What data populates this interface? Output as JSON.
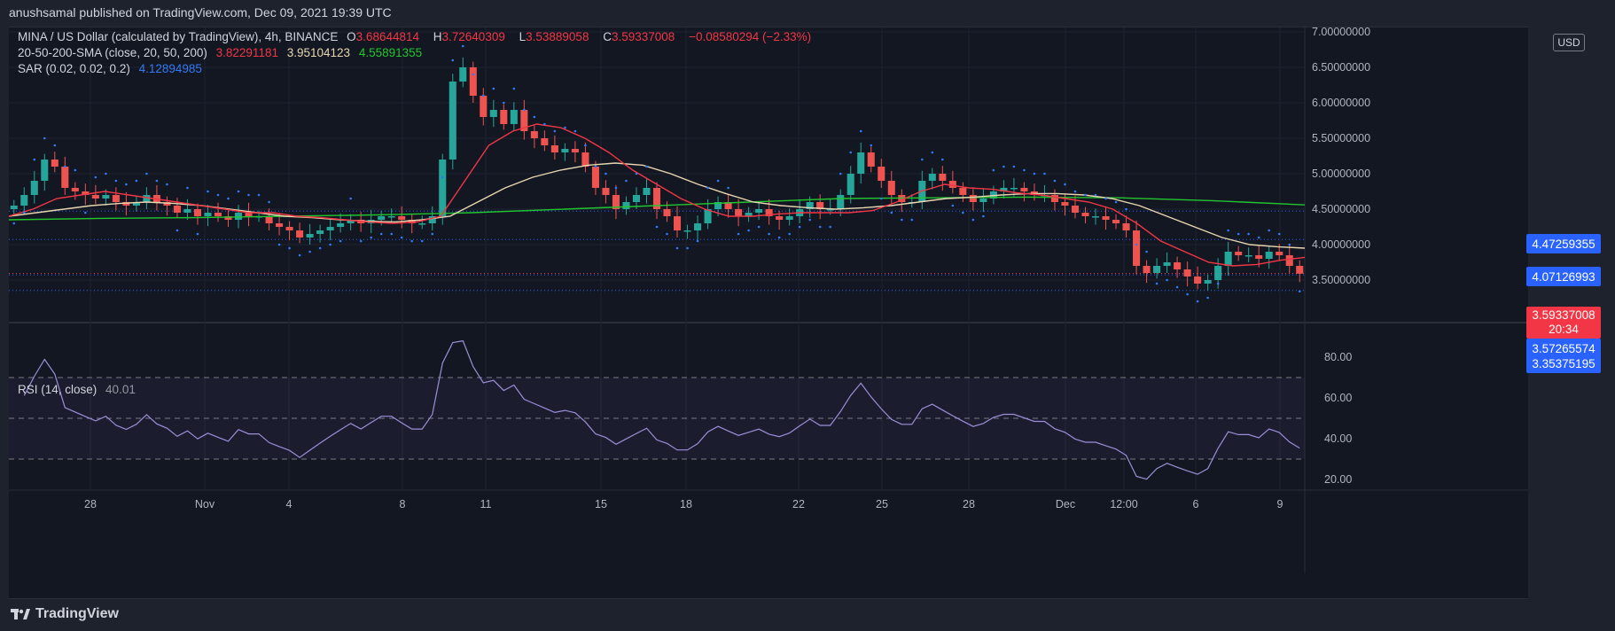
{
  "header": {
    "publish_line": "anushsamal published on TradingView.com, Dec 09, 2021 19:39 UTC"
  },
  "legend": {
    "symbol": "MINA / US Dollar (calculated by TradingView), 4h, BINANCE",
    "open_label": "O",
    "open": "3.68644814",
    "high_label": "H",
    "high": "3.72640309",
    "low_label": "L",
    "low": "3.53889058",
    "close_label": "C",
    "close": "3.59337008",
    "change": "−0.08580294 (−2.33%)",
    "sma_label": "20-50-200-SMA (close, 20, 50, 200)",
    "sma20": "3.82291181",
    "sma50": "3.95104123",
    "sma200": "4.55891355",
    "sar_label": "SAR (0.02, 0.02, 0.2)",
    "sar": "4.12894985",
    "rsi_label": "RSI (14, close)",
    "rsi": "40.01"
  },
  "currency_badge": "USD",
  "price_tags": [
    {
      "value": "4.47259355",
      "color": "#2962ff"
    },
    {
      "value": "4.07126993",
      "color": "#2962ff"
    },
    {
      "value": "3.59337008",
      "sub": "20:34",
      "color": "#f23645"
    },
    {
      "value": "3.57265574",
      "color": "#2962ff"
    },
    {
      "value": "3.35375195",
      "color": "#2962ff"
    }
  ],
  "footer": {
    "brand": "TradingView"
  },
  "colors": {
    "up": "#26a69a",
    "down": "#ef5350",
    "sma20": "#f23645",
    "sma50": "#e8d6b0",
    "sma200": "#22c52e",
    "sar": "#3179f5",
    "rsi": "#7e57c2"
  },
  "chart_data": {
    "type": "candlestick",
    "price_axis": {
      "ticks": [
        "7.00000000",
        "6.50000000",
        "6.00000000",
        "5.50000000",
        "5.00000000",
        "4.50000000",
        "4.00000000",
        "3.50000000"
      ],
      "values": [
        7.0,
        6.5,
        6.0,
        5.5,
        5.0,
        4.5,
        4.0,
        3.5
      ]
    },
    "rsi_axis": {
      "ticks": [
        "80.00",
        "60.00",
        "40.00",
        "20.00"
      ],
      "values": [
        80,
        60,
        40,
        20
      ],
      "upper_band": 70,
      "middle_band": 50,
      "lower_band": 30
    },
    "x_axis": {
      "labels": [
        "28",
        "Nov",
        "4",
        "8",
        "11",
        "15",
        "18",
        "22",
        "25",
        "28",
        "Dec",
        "12:00",
        "6",
        "9"
      ]
    },
    "key_price_lines": [
      4.4726,
      4.0713,
      3.5934,
      3.5727,
      3.3538
    ],
    "close_series": [
      4.55,
      4.7,
      4.9,
      5.2,
      5.1,
      4.8,
      4.75,
      4.7,
      4.65,
      4.7,
      4.6,
      4.55,
      4.6,
      4.7,
      4.6,
      4.55,
      4.45,
      4.5,
      4.4,
      4.45,
      4.4,
      4.35,
      4.45,
      4.4,
      4.4,
      4.3,
      4.25,
      4.2,
      4.1,
      4.15,
      4.2,
      4.25,
      4.3,
      4.35,
      4.3,
      4.35,
      4.4,
      4.4,
      4.35,
      4.3,
      4.3,
      4.4,
      5.2,
      6.3,
      6.5,
      6.1,
      5.8,
      5.9,
      5.7,
      5.9,
      5.6,
      5.5,
      5.4,
      5.3,
      5.35,
      5.3,
      5.1,
      4.8,
      4.7,
      4.5,
      4.6,
      4.7,
      4.8,
      4.5,
      4.4,
      4.2,
      4.2,
      4.3,
      4.5,
      4.6,
      4.5,
      4.4,
      4.45,
      4.5,
      4.4,
      4.35,
      4.4,
      4.5,
      4.6,
      4.5,
      4.5,
      4.7,
      5.0,
      5.3,
      5.1,
      4.9,
      4.7,
      4.6,
      4.6,
      4.9,
      5.0,
      4.9,
      4.8,
      4.7,
      4.6,
      4.65,
      4.75,
      4.8,
      4.8,
      4.75,
      4.7,
      4.7,
      4.6,
      4.55,
      4.45,
      4.4,
      4.4,
      4.35,
      4.3,
      4.2,
      3.7,
      3.6,
      3.7,
      3.75,
      3.65,
      3.55,
      3.45,
      3.5,
      3.7,
      3.9,
      3.85,
      3.85,
      3.8,
      3.9,
      3.85,
      3.7,
      3.59
    ],
    "sma20_series": [
      4.4,
      4.5,
      4.65,
      4.7,
      4.75,
      4.7,
      4.65,
      4.6,
      4.55,
      4.5,
      4.45,
      4.45,
      4.4,
      4.38,
      4.35,
      4.32,
      4.3,
      4.32,
      4.4,
      4.9,
      5.4,
      5.6,
      5.7,
      5.65,
      5.5,
      5.3,
      5.05,
      4.85,
      4.65,
      4.5,
      4.4,
      4.4,
      4.43,
      4.45,
      4.45,
      4.45,
      4.48,
      4.6,
      4.75,
      4.85,
      4.8,
      4.78,
      4.73,
      4.7,
      4.65,
      4.6,
      4.5,
      4.3,
      4.05,
      3.9,
      3.75,
      3.7,
      3.72,
      3.78,
      3.82
    ],
    "sma50_series": [
      4.4,
      4.45,
      4.5,
      4.55,
      4.58,
      4.6,
      4.58,
      4.55,
      4.5,
      4.45,
      4.4,
      4.38,
      4.35,
      4.33,
      4.32,
      4.35,
      4.4,
      4.6,
      4.8,
      4.95,
      5.05,
      5.12,
      5.15,
      5.12,
      5.0,
      4.85,
      4.72,
      4.6,
      4.55,
      4.52,
      4.5,
      4.52,
      4.55,
      4.6,
      4.65,
      4.67,
      4.7,
      4.72,
      4.72,
      4.7,
      4.65,
      4.55,
      4.4,
      4.25,
      4.1,
      4.0,
      3.97,
      3.95
    ],
    "sma200_series": [
      4.35,
      4.37,
      4.38,
      4.4,
      4.42,
      4.45,
      4.5,
      4.55,
      4.6,
      4.65,
      4.66,
      4.67,
      4.66,
      4.62,
      4.56
    ]
  }
}
